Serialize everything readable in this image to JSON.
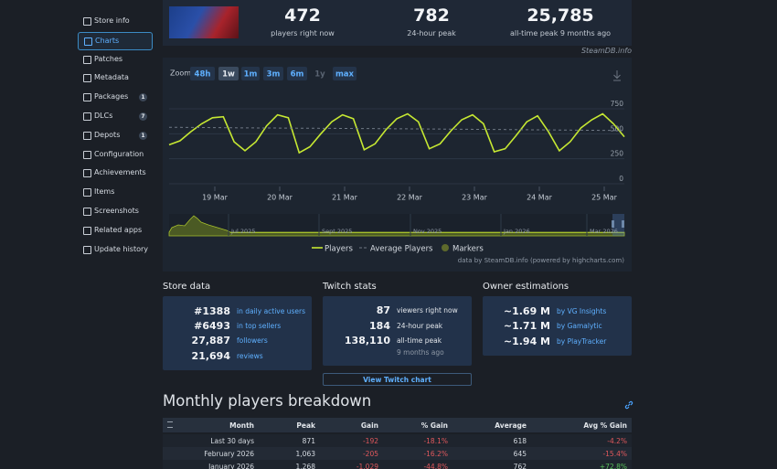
{
  "sidebar": [
    {
      "label": "Store info"
    },
    {
      "label": "Charts",
      "active": true
    },
    {
      "label": "Patches"
    },
    {
      "label": "Metadata"
    },
    {
      "label": "Packages",
      "badge": "1"
    },
    {
      "label": "DLCs",
      "badge": "7"
    },
    {
      "label": "Depots",
      "badge": "1"
    },
    {
      "label": "Configuration"
    },
    {
      "label": "Achievements"
    },
    {
      "label": "Items"
    },
    {
      "label": "Screenshots"
    },
    {
      "label": "Related apps"
    },
    {
      "label": "Update history"
    }
  ],
  "stats": [
    {
      "value": "472",
      "label": "players right now"
    },
    {
      "value": "782",
      "label": "24-hour peak"
    },
    {
      "value": "25,785",
      "label": "all-time peak 9 months ago"
    }
  ],
  "source": "SteamDB.info",
  "chart": {
    "type": "line",
    "zoom_label": "Zoom",
    "zoom_options": [
      "48h",
      "1w",
      "1m",
      "3m",
      "6m",
      "1y",
      "max"
    ],
    "zoom_active": "1w",
    "zoom_disabled": "1y",
    "series": [
      {
        "name": "Players",
        "color": "#c6e832",
        "values": [
          390,
          430,
          520,
          600,
          660,
          670,
          420,
          330,
          420,
          580,
          690,
          660,
          310,
          370,
          500,
          620,
          690,
          650,
          340,
          400,
          540,
          650,
          700,
          620,
          350,
          400,
          530,
          640,
          690,
          600,
          320,
          350,
          480,
          620,
          680,
          520,
          330,
          420,
          560,
          640,
          700,
          600,
          470
        ]
      },
      {
        "name": "Average Players",
        "color": "#6f7885",
        "values": [
          565,
          560,
          556,
          552,
          548,
          543,
          538,
          532
        ]
      }
    ],
    "markers_label": "Markers",
    "x_labels": [
      "19 Mar",
      "20 Mar",
      "21 Mar",
      "22 Mar",
      "23 Mar",
      "24 Mar",
      "25 Mar"
    ],
    "ylim": [
      0,
      750
    ],
    "yticks": [
      0,
      250,
      500,
      750
    ],
    "grid": true,
    "navigator_labels": [
      "Jul 2025",
      "Sept 2025",
      "Nov 2025",
      "Jan 2026",
      "Mar 2026"
    ],
    "credit": "data by SteamDB.info (powered by highcharts.com)"
  },
  "store_data": {
    "title": "Store data",
    "rows": [
      {
        "value": "#1388",
        "label": "in daily active users"
      },
      {
        "value": "#6493",
        "label": "in top sellers"
      },
      {
        "value": "27,887",
        "label": "followers"
      },
      {
        "value": "21,694",
        "label": "reviews"
      }
    ]
  },
  "twitch": {
    "title": "Twitch stats",
    "rows": [
      {
        "value": "87",
        "label": "viewers right now"
      },
      {
        "value": "184",
        "label": "24-hour peak"
      },
      {
        "value": "138,110",
        "label": "all-time peak"
      }
    ],
    "note": "9 months ago",
    "button": "View Twitch chart"
  },
  "owners": {
    "title": "Owner estimations",
    "rows": [
      {
        "value": "~1.69 M",
        "label": "by VG Insights"
      },
      {
        "value": "~1.71 M",
        "label": "by Gamalytic"
      },
      {
        "value": "~1.94 M",
        "label": "by PlayTracker"
      }
    ]
  },
  "breakdown": {
    "title": "Monthly players breakdown",
    "columns": [
      "Month",
      "Peak",
      "Gain",
      "% Gain",
      "Average",
      "Avg % Gain"
    ],
    "rows": [
      [
        "Last 30 days",
        "871",
        "-192",
        "-18.1%",
        "618",
        "-4.2%"
      ],
      [
        "February 2026",
        "1,063",
        "-205",
        "-16.2%",
        "645",
        "-15.4%"
      ],
      [
        "January 2026",
        "1,268",
        "-1,029",
        "-44.8%",
        "762",
        "+72.8%"
      ]
    ]
  }
}
